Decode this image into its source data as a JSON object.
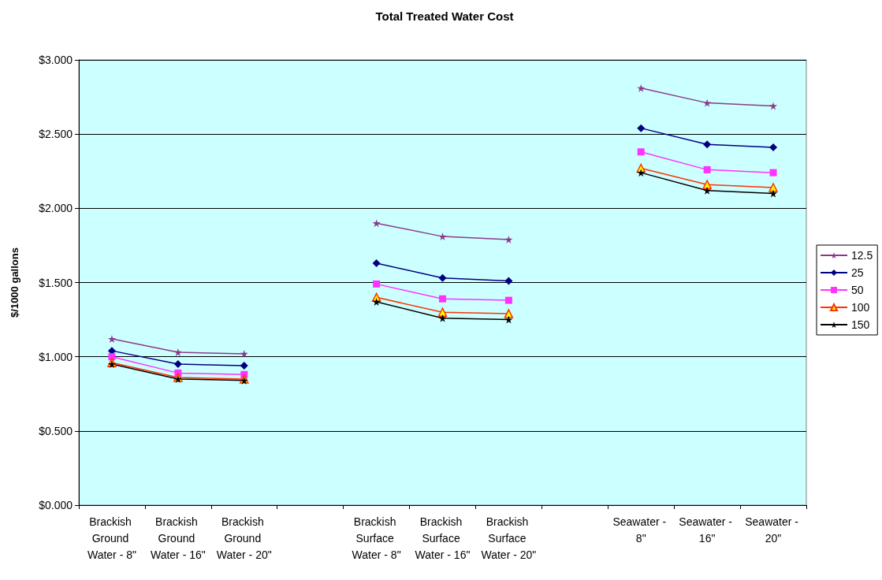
{
  "chart_data": {
    "type": "line",
    "title": "Total Treated Water Cost",
    "ylabel": "$/1000 gallons",
    "categories": [
      "Brackish Ground Water - 8\"",
      "Brackish Ground Water - 16\"",
      "Brackish Ground Water - 20\"",
      null,
      "Brackish Surface Water - 8\"",
      "Brackish Surface Water - 16\"",
      "Brackish Surface Water - 20\"",
      null,
      "Seawater - 8\"",
      "Seawater - 16\"",
      "Seawater - 20\""
    ],
    "series": [
      {
        "name": "12.5",
        "color": "#8b3a8b",
        "marker": "star",
        "values": [
          1.12,
          1.03,
          1.02,
          null,
          1.9,
          1.81,
          1.79,
          null,
          2.81,
          2.71,
          2.69
        ]
      },
      {
        "name": "25",
        "color": "#000080",
        "marker": "diamond",
        "values": [
          1.04,
          0.95,
          0.94,
          null,
          1.63,
          1.53,
          1.51,
          null,
          2.54,
          2.43,
          2.41
        ]
      },
      {
        "name": "50",
        "color": "#ff33ff",
        "marker": "square",
        "values": [
          1.0,
          0.89,
          0.88,
          null,
          1.49,
          1.39,
          1.38,
          null,
          2.38,
          2.26,
          2.24
        ]
      },
      {
        "name": "100",
        "color": "#ff3300",
        "marker": "triangle",
        "values": [
          0.96,
          0.86,
          0.85,
          null,
          1.4,
          1.3,
          1.29,
          null,
          2.27,
          2.16,
          2.14
        ]
      },
      {
        "name": "150",
        "color": "#000000",
        "marker": "star",
        "values": [
          0.95,
          0.85,
          0.84,
          null,
          1.37,
          1.26,
          1.25,
          null,
          2.24,
          2.12,
          2.1
        ]
      }
    ],
    "ylim": [
      0,
      3
    ],
    "yticks": [
      {
        "value": 0,
        "label": "$0.000"
      },
      {
        "value": 0.5,
        "label": "$0.500"
      },
      {
        "value": 1,
        "label": "$1.000"
      },
      {
        "value": 1.5,
        "label": "$1.500"
      },
      {
        "value": 2,
        "label": "$2.000"
      },
      {
        "value": 2.5,
        "label": "$2.500"
      },
      {
        "value": 3,
        "label": "$3.000"
      }
    ],
    "grid": "y",
    "legend": "right"
  }
}
